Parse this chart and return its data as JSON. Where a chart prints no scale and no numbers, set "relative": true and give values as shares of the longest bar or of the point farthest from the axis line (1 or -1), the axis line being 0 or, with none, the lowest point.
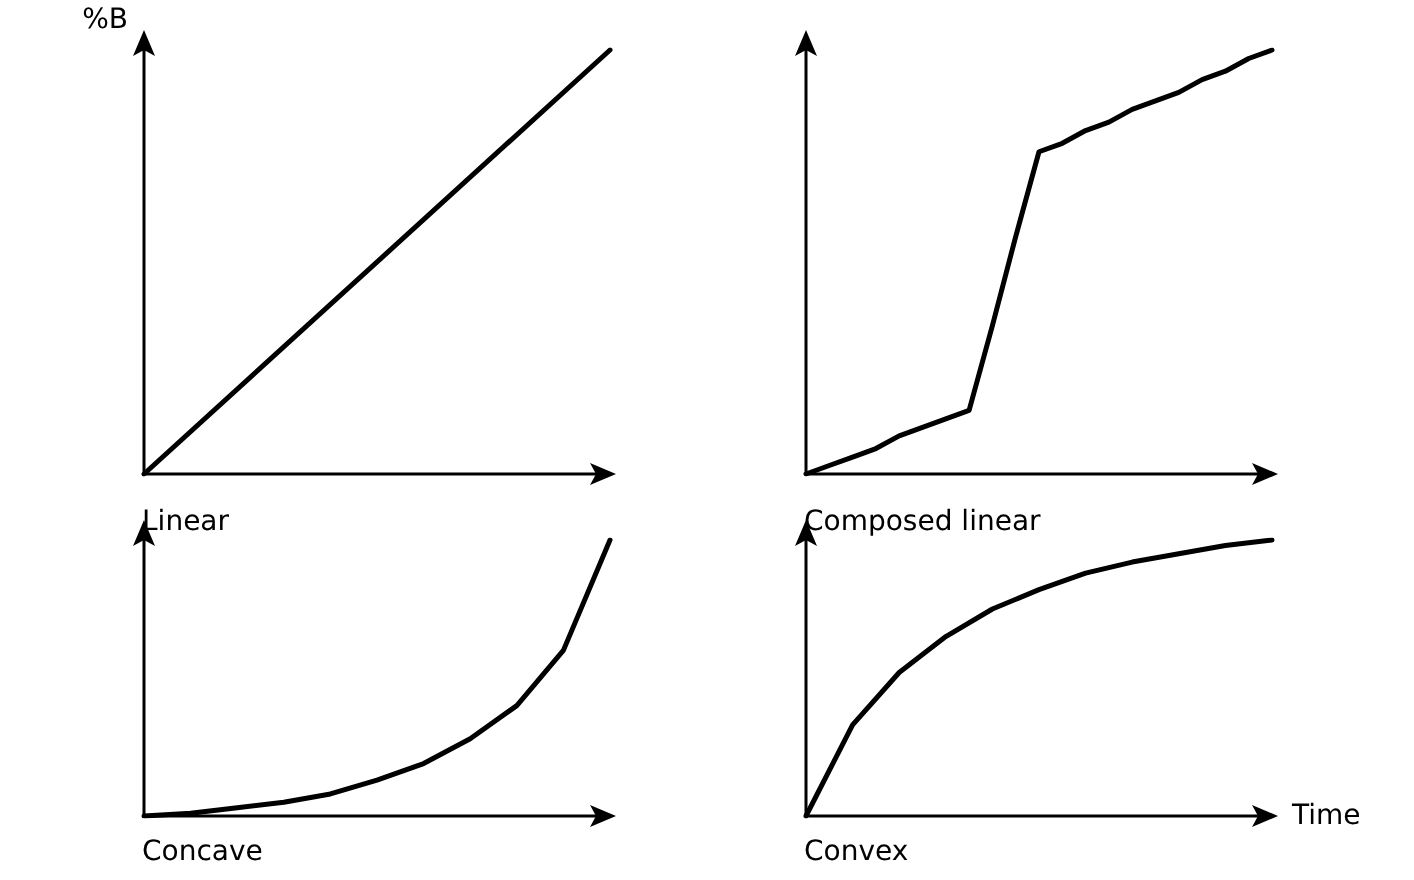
{
  "chart_data": [
    {
      "type": "line",
      "title": "Linear",
      "ylabel": "%B",
      "relative": true,
      "grid": false,
      "line_style": "solid",
      "color": "#000000",
      "categories": [
        null,
        null
      ],
      "values": [
        0,
        1
      ]
    },
    {
      "type": "line",
      "title": "Composed linear",
      "relative": true,
      "grid": false,
      "line_style": "solid",
      "color": "#000000",
      "categories": [
        null,
        null,
        null,
        null,
        null,
        null,
        null,
        null,
        null,
        null,
        null,
        null,
        null,
        null,
        null,
        null,
        null,
        null,
        null,
        null,
        null
      ],
      "values": [
        0,
        0.02,
        0.04,
        0.06,
        0.09,
        0.11,
        0.13,
        0.15,
        0.35,
        0.56,
        0.76,
        0.78,
        0.81,
        0.83,
        0.86,
        0.88,
        0.9,
        0.93,
        0.95,
        0.98,
        1
      ]
    },
    {
      "type": "line",
      "title": "Concave",
      "relative": true,
      "grid": false,
      "line_style": "solid",
      "color": "#000000",
      "categories": [
        null,
        null,
        null,
        null,
        null,
        null,
        null,
        null,
        null,
        null,
        null
      ],
      "values": [
        0,
        0.01,
        0.03,
        0.05,
        0.08,
        0.13,
        0.19,
        0.28,
        0.4,
        0.6,
        1
      ]
    },
    {
      "type": "line",
      "title": "Convex",
      "xlabel": "Time",
      "relative": true,
      "grid": false,
      "line_style": "solid",
      "color": "#000000",
      "categories": [
        null,
        null,
        null,
        null,
        null,
        null,
        null,
        null,
        null,
        null,
        null
      ],
      "values": [
        0,
        0.33,
        0.52,
        0.65,
        0.75,
        0.82,
        0.88,
        0.92,
        0.95,
        0.98,
        1
      ]
    }
  ]
}
